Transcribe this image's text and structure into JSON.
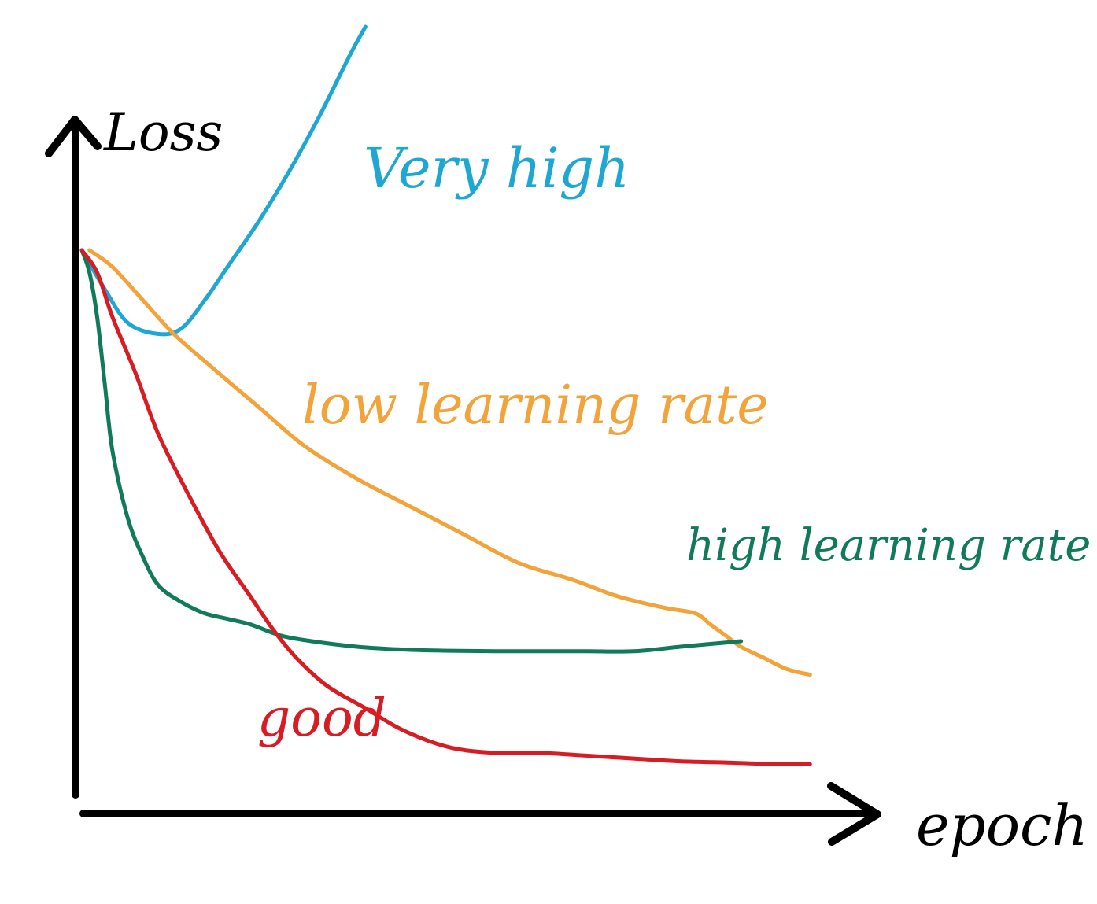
{
  "chart_data": {
    "type": "line",
    "xlabel": "epoch",
    "ylabel": "Loss",
    "xlim": [
      0,
      100
    ],
    "ylim": [
      0,
      100
    ],
    "grid": false,
    "legend": "none",
    "series": [
      {
        "name": "Very high",
        "color": "#1fa7d3",
        "values_x": [
          0,
          3,
          6,
          10,
          13,
          16,
          19,
          23,
          27,
          31,
          35,
          37
        ],
        "values_y": [
          100,
          93,
          87,
          85,
          86,
          91,
          97,
          105,
          114,
          124,
          135,
          140
        ]
      },
      {
        "name": "low learning rate",
        "color": "#f2a33a",
        "values_x": [
          1,
          4,
          8,
          12,
          17,
          23,
          29,
          36,
          43,
          50,
          57,
          64,
          70,
          76,
          80,
          82,
          84,
          86,
          89,
          92,
          95
        ],
        "values_y": [
          100,
          97,
          91,
          85,
          79,
          72,
          65,
          59,
          54,
          49,
          44,
          41,
          38,
          36,
          35,
          33,
          31,
          29,
          27,
          25,
          24
        ]
      },
      {
        "name": "high learning rate",
        "color": "#107a5a",
        "values_x": [
          0,
          1,
          2,
          3,
          4,
          6,
          8,
          10,
          13,
          16,
          19,
          22,
          26,
          30,
          36,
          42,
          48,
          54,
          60,
          66,
          72,
          78,
          82,
          86
        ],
        "values_y": [
          100,
          96,
          88,
          76,
          64,
          52,
          45,
          40,
          37,
          35,
          34,
          33,
          31,
          30,
          29,
          28.5,
          28.3,
          28.2,
          28.2,
          28.2,
          28.2,
          29,
          29.5,
          30
        ]
      },
      {
        "name": "good",
        "color": "#d81c24",
        "values_x": [
          0,
          2,
          4,
          7,
          10,
          14,
          18,
          22,
          25,
          28,
          32,
          37,
          42,
          48,
          54,
          60,
          66,
          72,
          78,
          84,
          90,
          95
        ],
        "values_y": [
          100,
          96,
          88,
          78,
          67,
          56,
          46,
          38,
          32,
          27,
          22,
          18,
          14,
          11,
          10,
          10,
          9.5,
          9,
          8.5,
          8.3,
          8,
          8
        ]
      }
    ],
    "annotations": [
      {
        "text": "Very high",
        "series": "Very high"
      },
      {
        "text": "low learning rate",
        "series": "low learning rate"
      },
      {
        "text": "high learning rate",
        "series": "high learning rate"
      },
      {
        "text": "good",
        "series": "good"
      }
    ]
  }
}
